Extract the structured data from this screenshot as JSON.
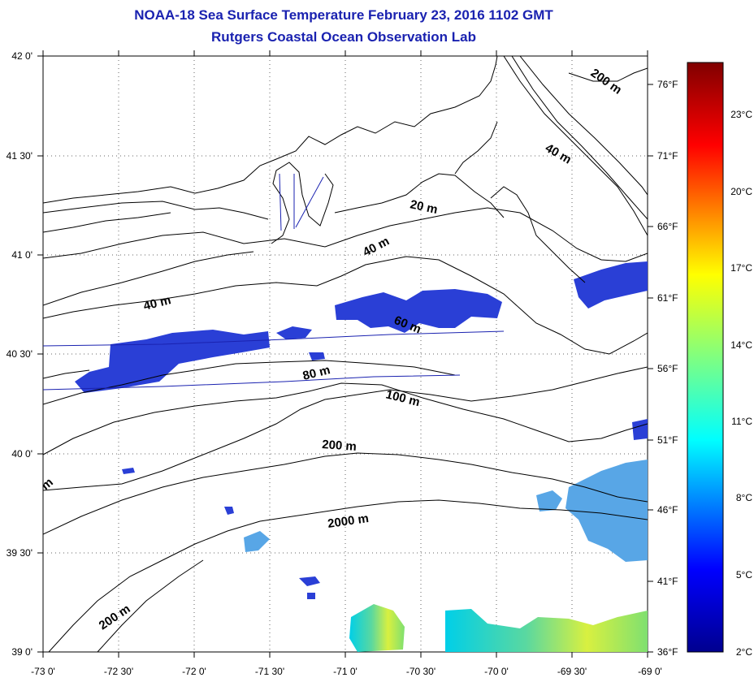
{
  "header": {
    "title": "NOAA-18 Sea Surface Temperature February 23, 2016 1102 GMT",
    "subtitle": "Rutgers Coastal Ocean Observation Lab"
  },
  "map": {
    "lat_labels": [
      "42 0'",
      "41 30'",
      "41 0'",
      "40 30'",
      "40 0'",
      "39 30'",
      "39 0'"
    ],
    "lon_labels": [
      "-73 0'",
      "-72 30'",
      "-72 0'",
      "-71 30'",
      "-71 0'",
      "-70 30'",
      "-70 0'",
      "-69 30'",
      "-69 0'"
    ],
    "lat_range": [
      39.0,
      42.0
    ],
    "lon_range": [
      -73.0,
      -69.0
    ],
    "grid": "dotted",
    "isobath_labels": [
      "200 m",
      "40 m",
      "20 m",
      "40 m",
      "40 m",
      "60 m",
      "80 m",
      "100 m",
      "200 m",
      "2000 m",
      "m",
      "200 m"
    ]
  },
  "colorbar": {
    "fahrenheit_labels": [
      "76°F",
      "71°F",
      "66°F",
      "61°F",
      "56°F",
      "51°F",
      "46°F",
      "41°F",
      "36°F"
    ],
    "celsius_labels": [
      "23°C",
      "20°C",
      "17°C",
      "14°C",
      "11°C",
      "8°C",
      "5°C",
      "2°C"
    ],
    "colors": [
      "#00008f",
      "#0000ff",
      "#00ffff",
      "#80ff80",
      "#ffff00",
      "#ff0000",
      "#800000"
    ]
  }
}
